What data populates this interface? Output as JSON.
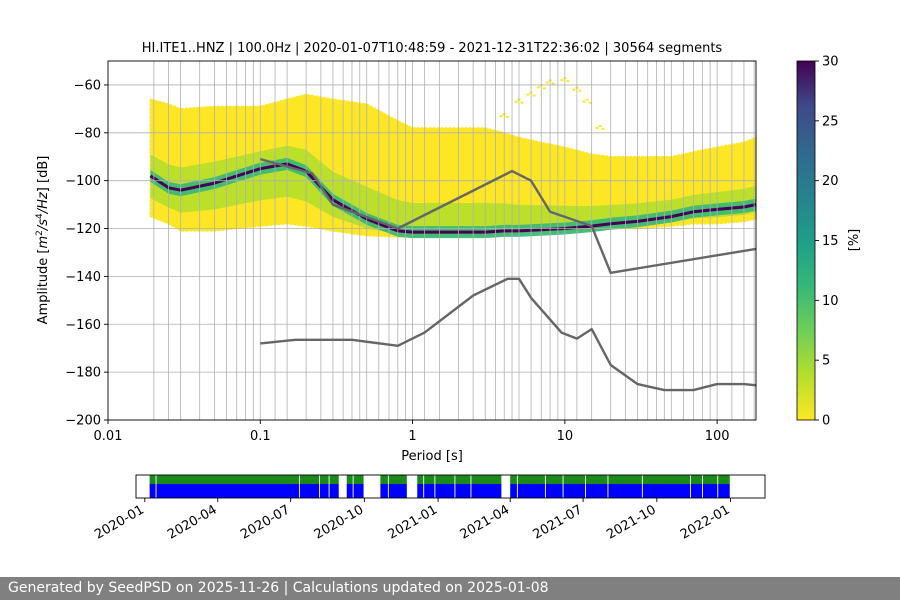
{
  "chart_data": [
    {
      "type": "heatmap",
      "title": "HI.ITE1..HNZ | 100.0Hz | 2020-01-07T10:48:59 - 2021-12-31T22:36:02 | 30564 segments",
      "xlabel": "Period [s]",
      "ylabel_parts": [
        "Amplitude [",
        "m",
        "2",
        "/",
        "s",
        "4",
        "/",
        "Hz",
        "] [dB]"
      ],
      "x_scale": "log",
      "xlim": [
        0.01,
        180
      ],
      "ylim": [
        -200,
        -50
      ],
      "x_ticks": [
        0.01,
        0.1,
        1,
        10,
        100
      ],
      "x_tick_labels": [
        "0.01",
        "0.1",
        "1",
        "10",
        "100"
      ],
      "y_ticks": [
        -200,
        -180,
        -160,
        -140,
        -120,
        -100,
        -80,
        -60
      ],
      "y_tick_labels": [
        "−200",
        "−180",
        "−160",
        "−140",
        "−120",
        "−100",
        "−80",
        "−60"
      ],
      "grid": true,
      "colorbar": {
        "label": "[%]",
        "range": [
          0,
          30
        ],
        "ticks": [
          0,
          5,
          10,
          15,
          20,
          25,
          30
        ],
        "tick_labels": [
          "0",
          "5",
          "10",
          "15",
          "20",
          "25",
          "30"
        ],
        "colormap": "viridis_r"
      },
      "period_grid_lines": [
        0.02,
        0.025,
        0.03,
        0.04,
        0.05,
        0.06,
        0.07,
        0.08,
        0.09,
        0.1,
        0.125,
        0.15,
        0.2,
        0.25,
        0.3,
        0.35,
        0.4,
        0.45,
        0.5,
        0.6,
        0.7,
        0.8,
        0.9,
        1.0,
        1.2,
        1.5,
        2,
        2.5,
        3,
        3.5,
        4,
        4.5,
        5,
        6,
        7,
        8,
        9,
        10,
        12,
        15,
        20,
        25,
        30,
        35,
        40,
        45,
        50,
        60,
        70,
        80,
        90,
        100,
        125,
        150,
        175
      ],
      "density_band": {
        "period": [
          0.019,
          0.025,
          0.03,
          0.05,
          0.1,
          0.15,
          0.2,
          0.3,
          0.5,
          0.8,
          1,
          2,
          3,
          4,
          5,
          7,
          10,
          15,
          20,
          30,
          50,
          70,
          100,
          150,
          180
        ],
        "mode_db": [
          -98,
          -103,
          -104,
          -101,
          -95,
          -93,
          -96,
          -108,
          -116,
          -121,
          -121.5,
          -121.5,
          -121.5,
          -121,
          -121,
          -120.5,
          -120,
          -119,
          -118,
          -117,
          -115,
          -113,
          -112,
          -111,
          -110
        ],
        "lower_db": [
          -115,
          -118,
          -121,
          -121,
          -119,
          -118,
          -119,
          -121,
          -123,
          -123.5,
          -123.5,
          -123,
          -123,
          -122.5,
          -122,
          -122,
          -121.5,
          -121,
          -120,
          -120,
          -119,
          -118,
          -118,
          -117,
          -116
        ],
        "upper_db": [
          -66,
          -68,
          -70,
          -69,
          -69,
          -66,
          -64,
          -66,
          -68,
          -75,
          -78,
          -78,
          -78,
          -80,
          -82,
          -84,
          -86,
          -89,
          -90,
          -90,
          -90,
          -88,
          -86,
          -84,
          -82
        ]
      },
      "outlier_arc": {
        "period": [
          3,
          4,
          5,
          6,
          7,
          8,
          10,
          12,
          14,
          17
        ],
        "db": [
          -80,
          -73,
          -67,
          -64,
          -61,
          -59,
          -58,
          -62,
          -67,
          -78
        ]
      },
      "series": [
        {
          "x": [
            0.1,
            0.22,
            0.3,
            0.8,
            4.5,
            6,
            8,
            15,
            20,
            180
          ],
          "y": [
            -91,
            -97,
            -110,
            -120,
            -96,
            -100,
            -113,
            -119,
            -138.5,
            -128.5
          ]
        },
        {
          "x": [
            0.1,
            0.17,
            0.4,
            0.8,
            1.2,
            2.5,
            4.2,
            5,
            6,
            9.5,
            12,
            15,
            20,
            30,
            45,
            70,
            100,
            150,
            180
          ],
          "y": [
            -168,
            -166.5,
            -166.5,
            -169,
            -163.5,
            -148,
            -141,
            -141,
            -149,
            -163.5,
            -166,
            -162,
            -177,
            -185,
            -187.5,
            -187.5,
            -185,
            -185,
            -185.5
          ]
        }
      ]
    },
    {
      "type": "timeline",
      "x_ticks": [
        "2020-01",
        "2020-04",
        "2020-07",
        "2020-10",
        "2021-01",
        "2021-04",
        "2021-07",
        "2021-10",
        "2022-01"
      ],
      "x_tick_labels": [
        "2020-01",
        "2020-04",
        "2020-07",
        "2020-10",
        "2021-01",
        "2021-04",
        "2021-07",
        "2021-10",
        "2022-01"
      ],
      "xlim": [
        "2019-12-21",
        "2022-02-13"
      ],
      "colors": {
        "available": "#1a8a1a",
        "segments": "#0000ff",
        "gap": "#ffffff"
      },
      "data_range": [
        "2020-01-07",
        "2021-12-31"
      ],
      "gaps": [
        [
          "2020-08-30",
          "2020-09-09"
        ],
        [
          "2020-09-30",
          "2020-10-21"
        ],
        [
          "2020-11-23",
          "2020-12-06"
        ],
        [
          "2021-03-21",
          "2021-04-01"
        ]
      ],
      "marks": [
        "2020-01-15",
        "2020-07-12",
        "2020-08-06",
        "2020-08-18",
        "2020-09-17",
        "2020-10-31",
        "2020-12-14",
        "2020-12-28",
        "2021-01-22",
        "2021-02-11",
        "2021-04-10",
        "2021-05-15",
        "2021-06-06",
        "2021-07-04",
        "2021-08-01",
        "2021-09-13",
        "2021-11-12",
        "2021-11-27",
        "2021-12-16"
      ]
    }
  ],
  "footer": {
    "text": "Generated by SeedPSD on 2025-11-26 | Calculations updated on 2025-01-08"
  }
}
